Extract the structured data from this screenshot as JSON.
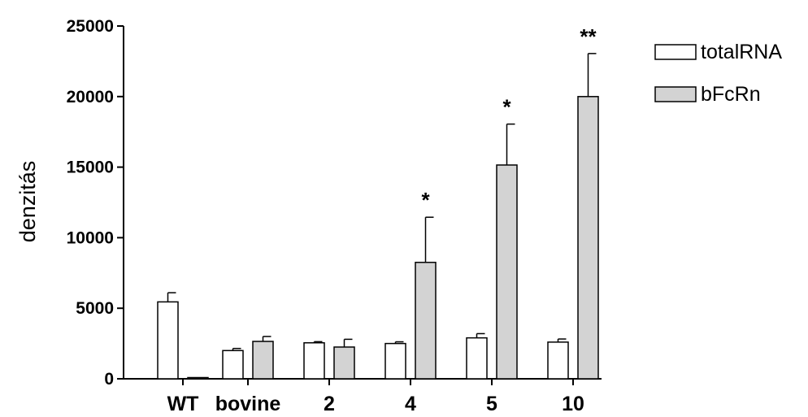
{
  "chart_data": {
    "type": "bar",
    "ylabel": "denzitás",
    "xlabel": "",
    "ylim": [
      0,
      25000
    ],
    "yticks": [
      0,
      5000,
      10000,
      15000,
      20000,
      25000
    ],
    "categories": [
      "WT",
      "bovine",
      "2",
      "4",
      "5",
      "10"
    ],
    "series": [
      {
        "name": "totalRNA",
        "color": "#ffffff",
        "values": [
          5450,
          2000,
          2550,
          2500,
          2900,
          2600
        ],
        "errors": [
          650,
          150,
          80,
          120,
          300,
          220
        ]
      },
      {
        "name": "bFcRn",
        "color": "#d3d3d3",
        "values": [
          0,
          2650,
          2250,
          8250,
          15150,
          20000
        ],
        "errors": [
          0,
          350,
          550,
          3200,
          2900,
          3050
        ]
      }
    ],
    "annotations": [
      {
        "category": "4",
        "series": "bFcRn",
        "text": "*"
      },
      {
        "category": "5",
        "series": "bFcRn",
        "text": "*"
      },
      {
        "category": "10",
        "series": "bFcRn",
        "text": "**"
      }
    ],
    "legend_position": "top-right",
    "grid": false
  }
}
